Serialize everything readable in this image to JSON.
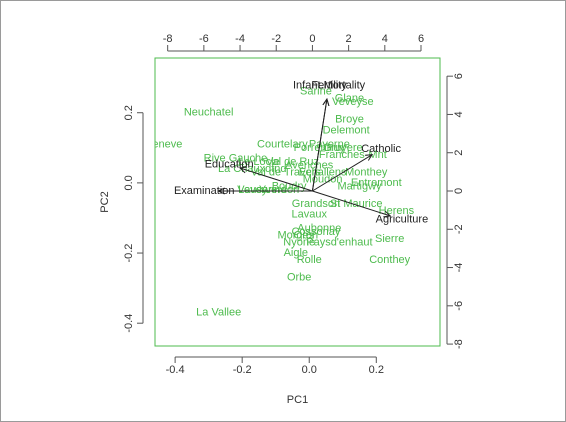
{
  "chart_data": {
    "type": "scatter",
    "title": "",
    "xlabel": "PC1",
    "ylabel": "PC2",
    "xlim": [
      -0.46,
      0.39
    ],
    "ylim": [
      -0.465,
      0.356
    ],
    "x_ticks": [
      "-0.4",
      "-0.2",
      "0.0",
      "0.2"
    ],
    "y_ticks": [
      "-0.4",
      "-0.2",
      "0.0",
      "0.2"
    ],
    "top_xlim": [
      -8.7,
      7.05
    ],
    "right_ylim": [
      -8.1,
      6.95
    ],
    "top_ticks": [
      "-8",
      "-6",
      "-4",
      "-2",
      "0",
      "2",
      "4",
      "6"
    ],
    "right_ticks": [
      "-8",
      "-6",
      "-4",
      "-2",
      "0",
      "2",
      "4",
      "6"
    ],
    "colors": {
      "points": "#4dbb4d",
      "arrows": "#222222",
      "frame": "#4dbb4d",
      "axis_text": "#333333"
    },
    "series": [
      {
        "points": [
          {
            "label": "Neuchatel",
            "x": -0.3,
            "y": 0.2
          },
          {
            "label": "V. De Geneve",
            "x": -0.48,
            "y": 0.11
          },
          {
            "label": "Rive Gauche",
            "x": -0.22,
            "y": 0.07
          },
          {
            "label": "Courtelary",
            "x": -0.08,
            "y": 0.11
          },
          {
            "label": "La Chauxdfnd",
            "x": -0.17,
            "y": 0.04
          },
          {
            "label": "Le Locle",
            "x": -0.15,
            "y": 0.06
          },
          {
            "label": "Val de Ruz",
            "x": -0.05,
            "y": 0.06
          },
          {
            "label": "Sarine",
            "x": 0.02,
            "y": 0.26
          },
          {
            "label": "Glane",
            "x": 0.12,
            "y": 0.24
          },
          {
            "label": "Veveyse",
            "x": 0.13,
            "y": 0.23
          },
          {
            "label": "Broye",
            "x": 0.12,
            "y": 0.18
          },
          {
            "label": "Delemont",
            "x": 0.11,
            "y": 0.15
          },
          {
            "label": "Gruyere",
            "x": 0.1,
            "y": 0.1
          },
          {
            "label": "Franches-Mnt",
            "x": 0.13,
            "y": 0.08
          },
          {
            "label": "Porrentruy",
            "x": 0.03,
            "y": 0.1
          },
          {
            "label": "Monthey",
            "x": 0.17,
            "y": 0.03
          },
          {
            "label": "Entremont",
            "x": 0.2,
            "y": -0.001
          },
          {
            "label": "Martigwy",
            "x": 0.15,
            "y": -0.01
          },
          {
            "label": "Herens",
            "x": 0.26,
            "y": -0.08
          },
          {
            "label": "St Maurice",
            "x": 0.14,
            "y": -0.06
          },
          {
            "label": "Conthey",
            "x": 0.24,
            "y": -0.22
          },
          {
            "label": "Sierre",
            "x": 0.24,
            "y": -0.16
          },
          {
            "label": "Lavaux",
            "x": 0.0,
            "y": -0.09
          },
          {
            "label": "Aubonne",
            "x": 0.03,
            "y": -0.13
          },
          {
            "label": "Oron",
            "x": -0.01,
            "y": -0.15
          },
          {
            "label": "Morges",
            "x": -0.04,
            "y": -0.15
          },
          {
            "label": "Moudon",
            "x": 0.04,
            "y": 0.01
          },
          {
            "label": "Grandson",
            "x": 0.02,
            "y": -0.06
          },
          {
            "label": "Paysd'enhaut",
            "x": 0.09,
            "y": -0.17
          },
          {
            "label": "Nyone",
            "x": -0.03,
            "y": -0.17
          },
          {
            "label": "Aigle",
            "x": -0.04,
            "y": -0.2
          },
          {
            "label": "Rolle",
            "x": 0.0,
            "y": -0.22
          },
          {
            "label": "Orbe",
            "x": -0.03,
            "y": -0.27
          },
          {
            "label": "La Vallee",
            "x": -0.27,
            "y": -0.37
          },
          {
            "label": "Vevey",
            "x": -0.17,
            "y": -0.02
          },
          {
            "label": "Lausanne",
            "x": -0.14,
            "y": -0.02
          },
          {
            "label": "Yverdon",
            "x": -0.09,
            "y": -0.02
          },
          {
            "label": "Avenches",
            "x": 0.0,
            "y": 0.05
          },
          {
            "label": "Payerne",
            "x": 0.06,
            "y": 0.11
          },
          {
            "label": "Boudry",
            "x": -0.06,
            "y": -0.01
          },
          {
            "label": "Echallens",
            "x": 0.04,
            "y": 0.03
          },
          {
            "label": "Val de Travers",
            "x": -0.07,
            "y": 0.03
          },
          {
            "label": "Cossonay",
            "x": 0.02,
            "y": -0.14
          }
        ]
      }
    ],
    "loadings": [
      {
        "label": "Agriculture",
        "x": 4.3,
        "y": -1.3
      },
      {
        "label": "Examination",
        "x": -5.2,
        "y": 0.0
      },
      {
        "label": "Education",
        "x": -4.0,
        "y": 1.2
      },
      {
        "label": "Catholic",
        "x": 3.3,
        "y": 1.9
      },
      {
        "label": "Infant.Mortality",
        "x": 0.8,
        "y": 4.8
      },
      {
        "label": "Fertility",
        "x": 0.8,
        "y": 4.8
      }
    ]
  }
}
